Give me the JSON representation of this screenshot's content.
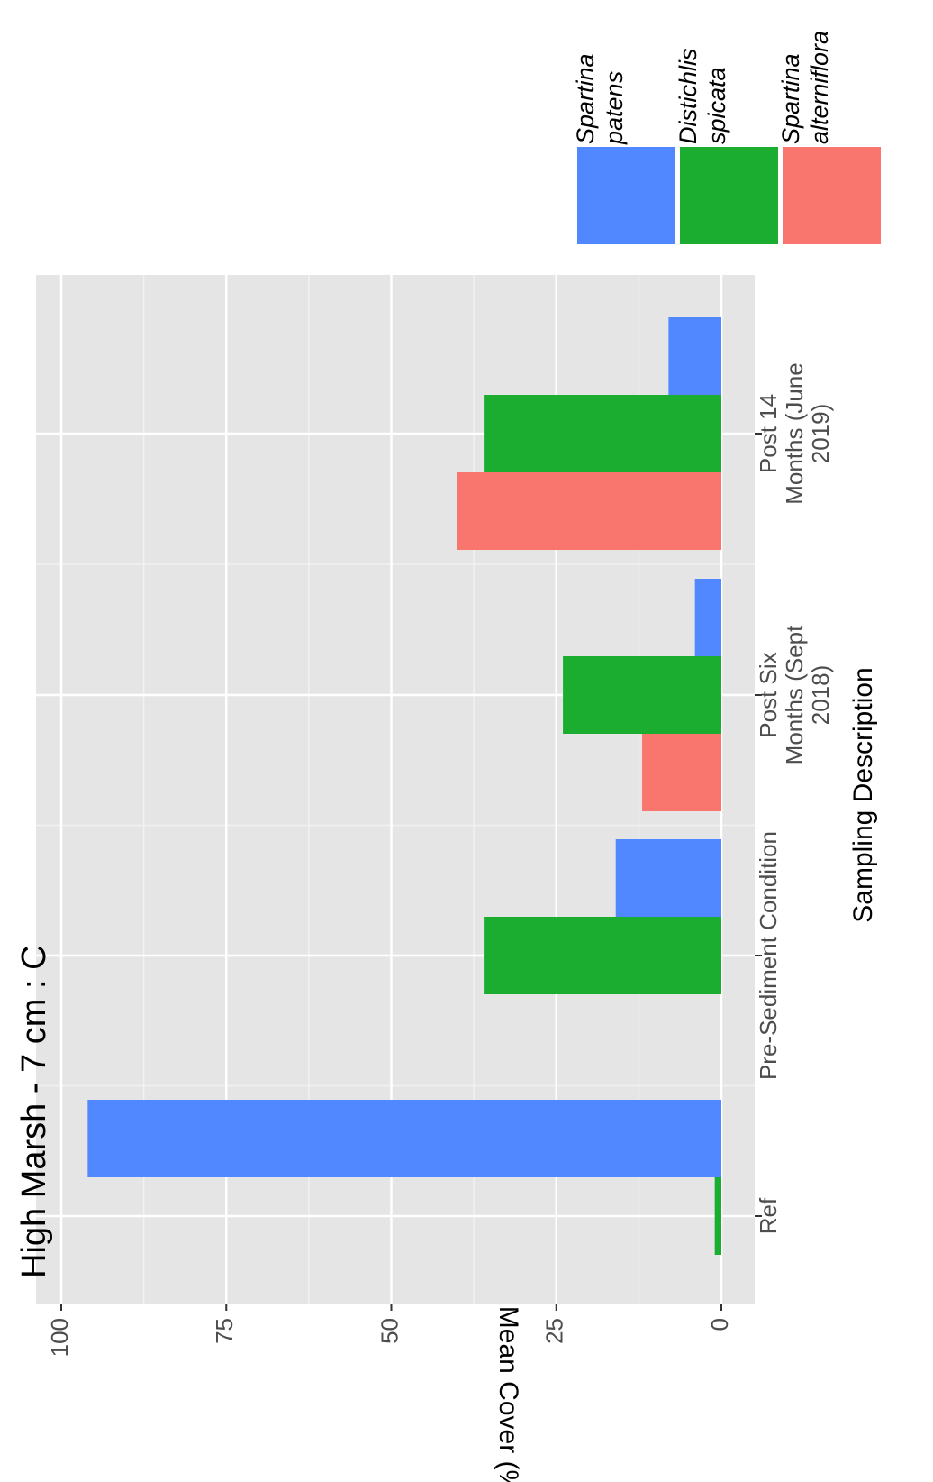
{
  "chart_data": {
    "type": "bar",
    "title": "High Marsh -  7 cm :  C",
    "xlabel": "Sampling Description",
    "ylabel": "Mean Cover (%)",
    "ylim": [
      0,
      100
    ],
    "yticks": [
      "0",
      "25",
      "50",
      "75",
      "100"
    ],
    "ytick_values": [
      0,
      25,
      50,
      75,
      100
    ],
    "categories": [
      [
        "Ref"
      ],
      [
        "Pre-Sediment Condition"
      ],
      [
        "Post Six",
        "Months (Sept",
        "2018)"
      ],
      [
        "Post 14",
        "Months (June",
        "2019)"
      ]
    ],
    "series": [
      {
        "name": [
          "Spartina",
          "alterniflora"
        ],
        "color": "#f8766d",
        "values": [
          0,
          0,
          12,
          40
        ]
      },
      {
        "name": [
          "Distichlis",
          "spicata"
        ],
        "color": "#1aad2f",
        "values": [
          1,
          36,
          24,
          36
        ]
      },
      {
        "name": [
          "Spartina",
          "patens"
        ],
        "color": "#5288ff",
        "values": [
          96,
          16,
          4,
          8
        ]
      }
    ],
    "grid": true,
    "orientation": "rotated 90° counter-clockwise",
    "legend_position": "top-right"
  }
}
